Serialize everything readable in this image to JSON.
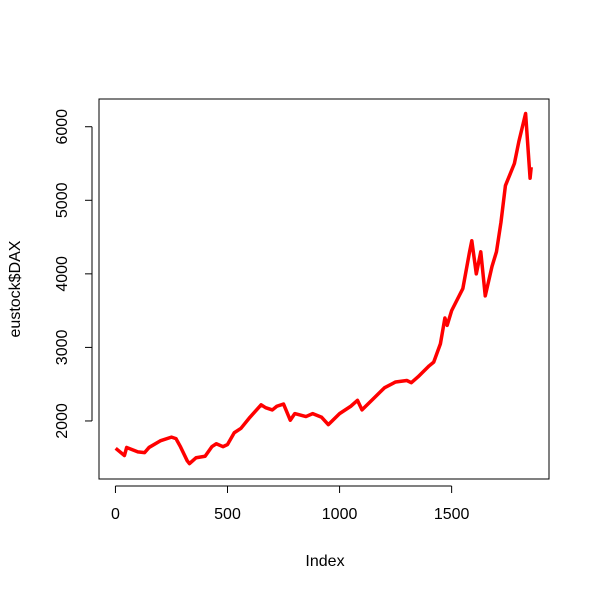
{
  "chart_data": {
    "type": "line",
    "xlabel": "Index",
    "ylabel": "eustock$DAX",
    "x": [
      1,
      40,
      50,
      100,
      130,
      150,
      200,
      250,
      270,
      290,
      320,
      330,
      360,
      400,
      430,
      450,
      480,
      500,
      530,
      560,
      600,
      650,
      670,
      700,
      720,
      750,
      780,
      800,
      850,
      880,
      920,
      950,
      1000,
      1050,
      1080,
      1100,
      1150,
      1200,
      1250,
      1300,
      1320,
      1350,
      1400,
      1420,
      1450,
      1470,
      1480,
      1500,
      1550,
      1580,
      1590,
      1610,
      1630,
      1650,
      1680,
      1700,
      1720,
      1740,
      1760,
      1780,
      1800,
      1830,
      1850,
      1855
    ],
    "series": [
      {
        "name": "eustock$DAX",
        "color": "#ff0000",
        "values": [
          1628,
          1530,
          1640,
          1580,
          1570,
          1640,
          1730,
          1780,
          1760,
          1650,
          1460,
          1420,
          1500,
          1520,
          1650,
          1690,
          1650,
          1680,
          1840,
          1900,
          2050,
          2220,
          2180,
          2150,
          2200,
          2230,
          2010,
          2100,
          2060,
          2100,
          2050,
          1950,
          2100,
          2200,
          2280,
          2150,
          2300,
          2450,
          2530,
          2550,
          2520,
          2600,
          2750,
          2800,
          3050,
          3400,
          3300,
          3500,
          3800,
          4300,
          4450,
          4000,
          4300,
          3700,
          4100,
          4300,
          4700,
          5200,
          5350,
          5500,
          5800,
          6180,
          5300,
          5450
        ]
      }
    ],
    "xlim": [
      -73.4,
      1934.4
    ],
    "ylim": [
      1211,
      6377
    ],
    "xticks": [
      0,
      500,
      1000,
      1500
    ],
    "yticks": [
      2000,
      3000,
      4000,
      5000,
      6000
    ]
  }
}
